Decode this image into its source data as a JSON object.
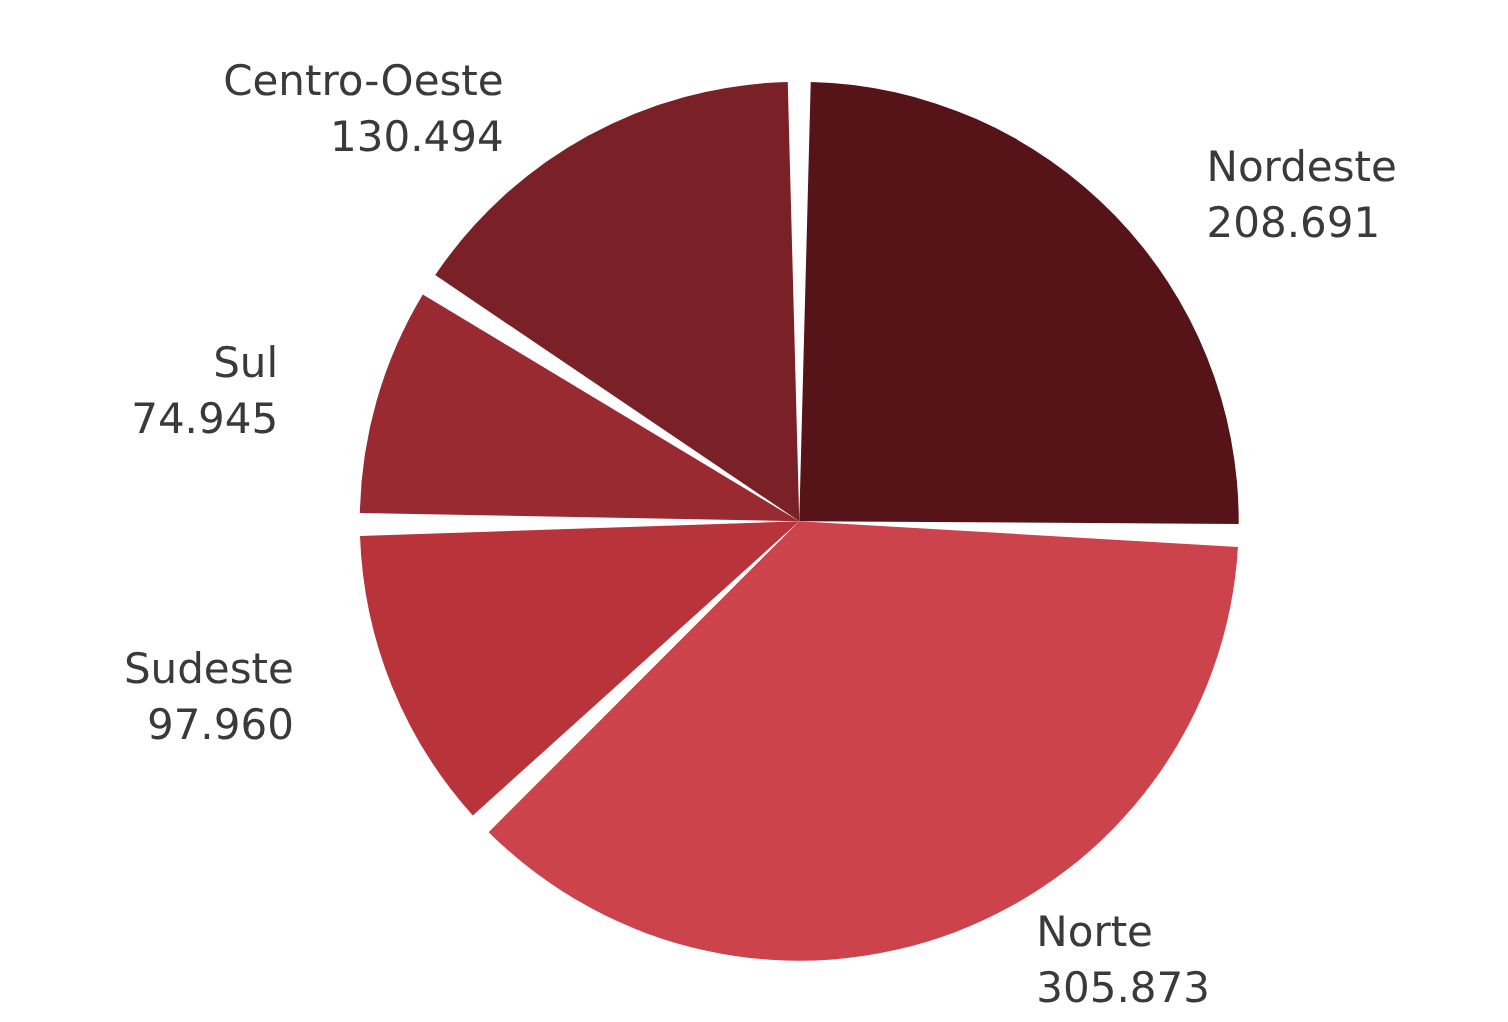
{
  "chart_data": {
    "type": "pie",
    "categories": [
      "Nordeste",
      "Norte",
      "Sudeste",
      "Sul",
      "Centro-Oeste"
    ],
    "values": [
      208691,
      305873,
      97960,
      74945,
      130494
    ],
    "value_labels": [
      "208.691",
      "305.873",
      "97.960",
      "74.945",
      "130.494"
    ],
    "colors": [
      "#561419",
      "#cc434b",
      "#b8333a",
      "#9a2a31",
      "#7a2128"
    ],
    "legend": false
  }
}
